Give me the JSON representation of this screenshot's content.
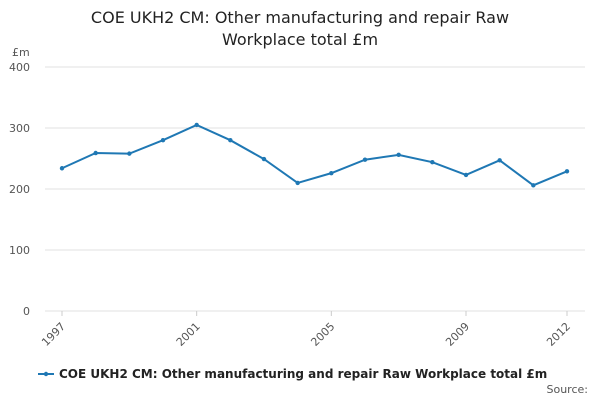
{
  "chart_data": {
    "type": "line",
    "title": "COE UKH2 CM: Other manufacturing and repair Raw Workplace total £m",
    "y_unit": "£m",
    "source": "Source:",
    "x": [
      1997,
      1998,
      1999,
      2000,
      2001,
      2002,
      2003,
      2004,
      2005,
      2006,
      2007,
      2008,
      2009,
      2010,
      2011,
      2012
    ],
    "series": [
      {
        "name": "COE UKH2 CM: Other manufacturing and repair Raw Workplace total £m",
        "color": "#1f78b4",
        "values": [
          234,
          259,
          258,
          280,
          305,
          280,
          249,
          210,
          226,
          248,
          256,
          244,
          223,
          247,
          206,
          229
        ]
      }
    ],
    "xlim": [
      1997,
      2012
    ],
    "xticks": [
      1997,
      2001,
      2005,
      2009,
      2012
    ],
    "ylim": [
      0,
      400
    ],
    "yticks": [
      0,
      100,
      200,
      300,
      400
    ],
    "grid": true
  }
}
